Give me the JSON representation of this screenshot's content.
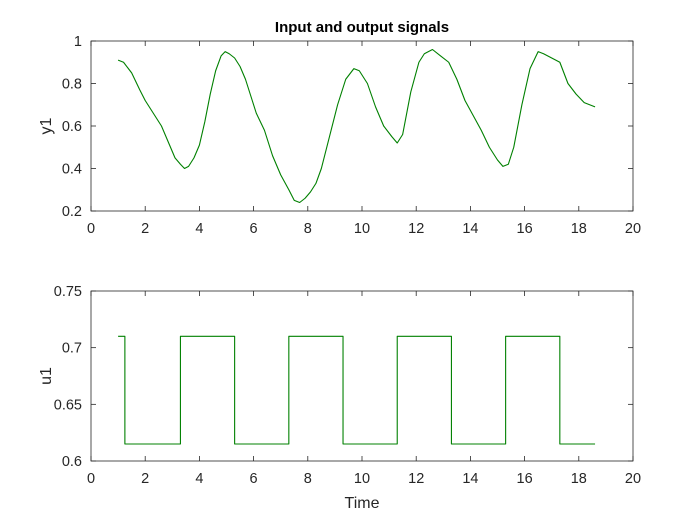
{
  "chart_data": [
    {
      "type": "line",
      "title": "Input and output signals",
      "xlabel": "",
      "ylabel": "y1",
      "xlim": [
        0,
        20
      ],
      "ylim": [
        0.2,
        1
      ],
      "xticks": [
        "0",
        "2",
        "4",
        "6",
        "8",
        "10",
        "12",
        "14",
        "16",
        "18",
        "20"
      ],
      "yticks": [
        "0.2",
        "0.4",
        "0.6",
        "0.8",
        "1"
      ],
      "grid": false,
      "series": [
        {
          "color": "#008000",
          "x": [
            1.0,
            1.2,
            1.5,
            1.8,
            2.0,
            2.3,
            2.6,
            2.9,
            3.1,
            3.3,
            3.45,
            3.6,
            3.8,
            4.0,
            4.2,
            4.4,
            4.6,
            4.8,
            4.95,
            5.1,
            5.3,
            5.5,
            5.7,
            5.9,
            6.1,
            6.4,
            6.7,
            7.0,
            7.3,
            7.5,
            7.7,
            7.9,
            8.1,
            8.3,
            8.5,
            8.8,
            9.1,
            9.4,
            9.7,
            9.9,
            10.2,
            10.5,
            10.8,
            11.1,
            11.3,
            11.5,
            11.8,
            12.1,
            12.3,
            12.6,
            12.9,
            13.2,
            13.5,
            13.8,
            14.1,
            14.4,
            14.7,
            15.0,
            15.2,
            15.4,
            15.6,
            15.9,
            16.2,
            16.5,
            16.7,
            17.0,
            17.3,
            17.6,
            17.9,
            18.2,
            18.6
          ],
          "y": [
            0.91,
            0.9,
            0.85,
            0.77,
            0.72,
            0.66,
            0.6,
            0.51,
            0.45,
            0.42,
            0.4,
            0.41,
            0.45,
            0.51,
            0.62,
            0.75,
            0.86,
            0.93,
            0.95,
            0.94,
            0.92,
            0.88,
            0.82,
            0.74,
            0.66,
            0.58,
            0.46,
            0.37,
            0.3,
            0.25,
            0.24,
            0.26,
            0.29,
            0.33,
            0.4,
            0.55,
            0.7,
            0.82,
            0.87,
            0.86,
            0.8,
            0.69,
            0.6,
            0.55,
            0.52,
            0.56,
            0.76,
            0.9,
            0.94,
            0.96,
            0.93,
            0.9,
            0.82,
            0.72,
            0.65,
            0.58,
            0.5,
            0.44,
            0.41,
            0.42,
            0.5,
            0.7,
            0.87,
            0.95,
            0.94,
            0.92,
            0.9,
            0.8,
            0.75,
            0.71,
            0.69
          ]
        }
      ]
    },
    {
      "type": "line",
      "title": "",
      "xlabel": "Time",
      "ylabel": "u1",
      "xlim": [
        0,
        20
      ],
      "ylim": [
        0.6,
        0.75
      ],
      "xticks": [
        "0",
        "2",
        "4",
        "6",
        "8",
        "10",
        "12",
        "14",
        "16",
        "18",
        "20"
      ],
      "yticks": [
        "0.6",
        "0.65",
        "0.7",
        "0.75"
      ],
      "grid": false,
      "series": [
        {
          "color": "#008000",
          "step": true,
          "x": [
            1.0,
            1.25,
            1.25,
            3.3,
            3.3,
            5.3,
            5.3,
            7.3,
            7.3,
            9.3,
            9.3,
            11.3,
            11.3,
            13.3,
            13.3,
            15.3,
            15.3,
            17.3,
            17.3,
            18.6
          ],
          "y": [
            0.71,
            0.71,
            0.615,
            0.615,
            0.71,
            0.71,
            0.615,
            0.615,
            0.71,
            0.71,
            0.615,
            0.615,
            0.71,
            0.71,
            0.615,
            0.615,
            0.71,
            0.71,
            0.615,
            0.615
          ]
        }
      ]
    }
  ]
}
